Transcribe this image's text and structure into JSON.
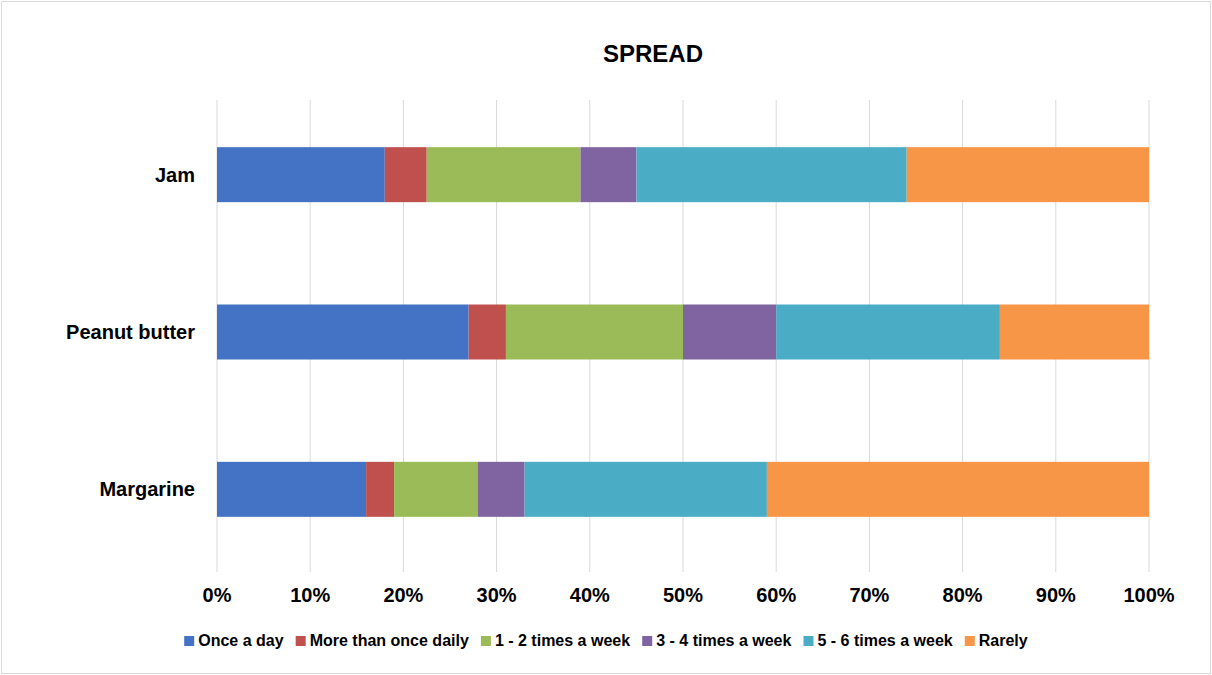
{
  "chart_data": {
    "type": "bar",
    "title": "SPREAD",
    "orientation": "horizontal",
    "stacked": true,
    "grid": true,
    "legend": "bottom",
    "categories": [
      "Jam",
      "Peanut butter",
      "Margarine"
    ],
    "series": [
      {
        "name": "Once a day",
        "color": "#4472c4",
        "values": [
          18,
          27,
          16
        ]
      },
      {
        "name": "More than once daily",
        "color": "#c0504d",
        "values": [
          4.5,
          4,
          3
        ]
      },
      {
        "name": "1 - 2 times a week",
        "color": "#9bbb59",
        "values": [
          16.5,
          19,
          9
        ]
      },
      {
        "name": "3 - 4 times a week",
        "color": "#8064a2",
        "values": [
          6,
          10,
          5
        ]
      },
      {
        "name": "5 - 6 times a week",
        "color": "#4bacc6",
        "values": [
          29,
          24,
          26
        ]
      },
      {
        "name": "Rarely",
        "color": "#f79646",
        "values": [
          26,
          16,
          41
        ]
      }
    ],
    "xlim": [
      0,
      100
    ],
    "xticks": [
      {
        "value": 0,
        "label": "0%"
      },
      {
        "value": 10,
        "label": "10%"
      },
      {
        "value": 20,
        "label": "20%"
      },
      {
        "value": 30,
        "label": "30%"
      },
      {
        "value": 40,
        "label": "40%"
      },
      {
        "value": 50,
        "label": "50%"
      },
      {
        "value": 60,
        "label": "60%"
      },
      {
        "value": 70,
        "label": "70%"
      },
      {
        "value": 80,
        "label": "80%"
      },
      {
        "value": 90,
        "label": "90%"
      },
      {
        "value": 100,
        "label": "100%"
      }
    ]
  }
}
